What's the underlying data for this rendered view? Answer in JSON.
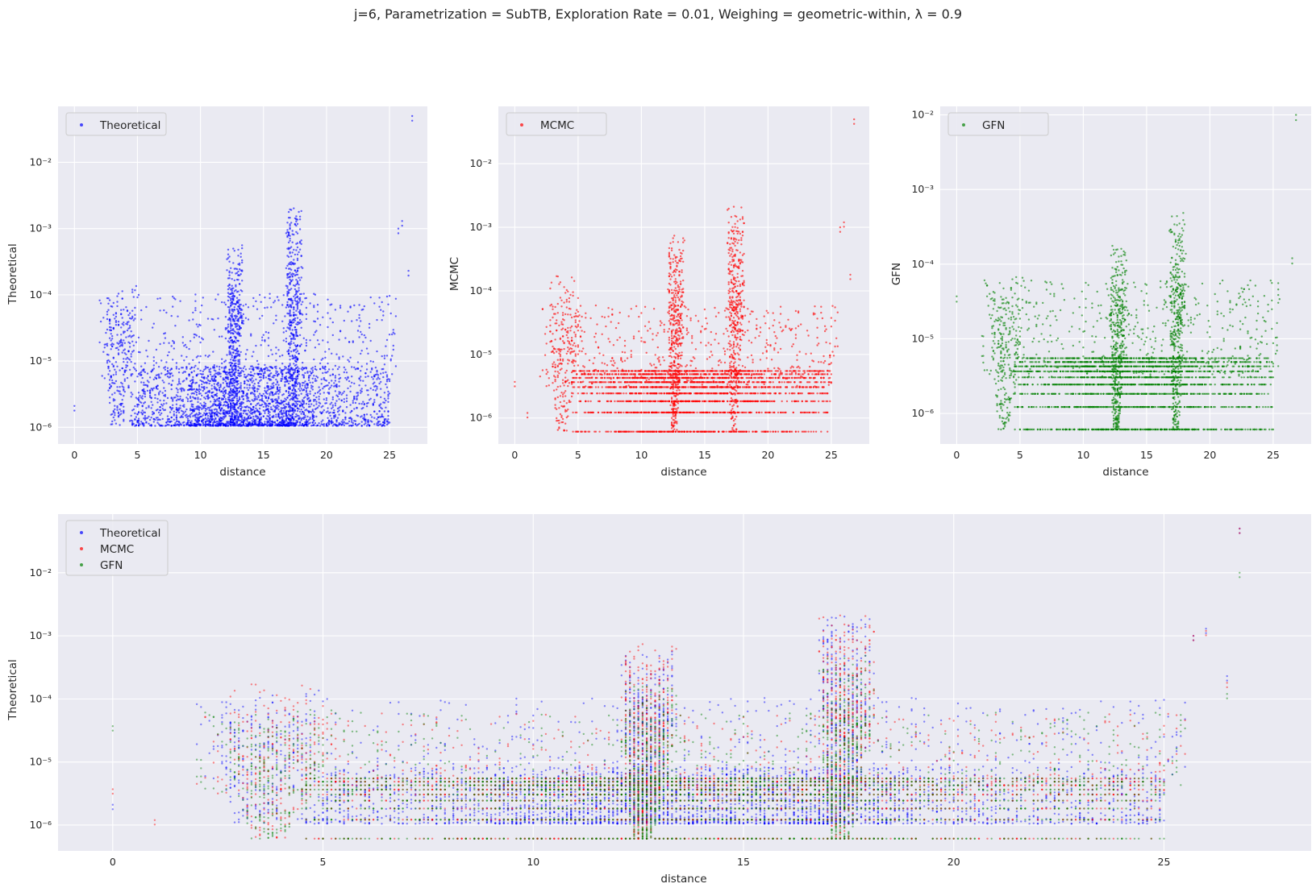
{
  "figure": {
    "suptitle": "j=6, Parametrization = SubTB, Exploration Rate = 0.01, Weighing = geometric-within, λ = 0.9"
  },
  "chart_data": [
    {
      "type": "scatter",
      "panel": "top-left",
      "xlabel": "distance",
      "ylabel": "Theoretical",
      "yscale": "log",
      "xlim": [
        -1.3,
        28
      ],
      "ylim": [
        5.6e-07,
        0.07
      ],
      "xticks": [
        0,
        5,
        10,
        15,
        20,
        25
      ],
      "yticks": [
        1e-06,
        1e-05,
        0.0001,
        0.001,
        0.01
      ],
      "ytick_labels": [
        "10⁻⁶",
        "10⁻⁵",
        "10⁻⁴",
        "10⁻³",
        "10⁻²"
      ],
      "grid": true,
      "legend": {
        "position": "upper-left",
        "entries": [
          "Theoretical"
        ]
      },
      "series": [
        {
          "name": "Theoretical",
          "color": "#0000ff",
          "floor": 1.05e-06,
          "base_levels": [],
          "peaks": [
            {
              "x": 12.5,
              "y": 0.00065
            },
            {
              "x": 17.2,
              "y": 0.0022
            },
            {
              "x": 3.2,
              "y": 0.00018
            },
            {
              "x": 26.8,
              "y": 0.05
            },
            {
              "x": 26.0,
              "y": 0.0013
            },
            {
              "x": 25.7,
              "y": 0.001
            },
            {
              "x": 26.5,
              "y": 0.00023
            },
            {
              "x": 0.0,
              "y": 2.1e-06
            }
          ]
        }
      ]
    },
    {
      "type": "scatter",
      "panel": "top-middle",
      "xlabel": "distance",
      "ylabel": "MCMC",
      "yscale": "log",
      "xlim": [
        -1.3,
        28
      ],
      "ylim": [
        3.9e-07,
        0.08
      ],
      "xticks": [
        0,
        5,
        10,
        15,
        20,
        25
      ],
      "yticks": [
        1e-06,
        1e-05,
        0.0001,
        0.001,
        0.01
      ],
      "ytick_labels": [
        "10⁻⁶",
        "10⁻⁵",
        "10⁻⁴",
        "10⁻³",
        "10⁻²"
      ],
      "grid": true,
      "legend": {
        "position": "upper-left",
        "entries": [
          "MCMC"
        ]
      },
      "series": [
        {
          "name": "MCMC",
          "color": "#ff0000",
          "floor": 6.1e-07,
          "base_levels": [
            6.1e-07,
            1.22e-06,
            1.83e-06,
            2.44e-06,
            3.05e-06,
            3.66e-06,
            4.27e-06,
            4.88e-06,
            5.49e-06
          ],
          "peaks": [
            {
              "x": 12.5,
              "y": 0.00085
            },
            {
              "x": 17.2,
              "y": 0.0027
            },
            {
              "x": 3.5,
              "y": 0.00019
            },
            {
              "x": 26.8,
              "y": 0.05
            },
            {
              "x": 26.0,
              "y": 0.0012
            },
            {
              "x": 25.7,
              "y": 0.001
            },
            {
              "x": 26.5,
              "y": 0.00018
            },
            {
              "x": 0.0,
              "y": 3.7e-06
            },
            {
              "x": 1.0,
              "y": 1.2e-06
            }
          ]
        }
      ]
    },
    {
      "type": "scatter",
      "panel": "top-right",
      "xlabel": "distance",
      "ylabel": "GFN",
      "yscale": "log",
      "xlim": [
        -1.3,
        28
      ],
      "ylim": [
        3.9e-07,
        0.013
      ],
      "xticks": [
        0,
        5,
        10,
        15,
        20,
        25
      ],
      "yticks": [
        1e-06,
        1e-05,
        0.0001,
        0.001,
        0.01
      ],
      "ytick_labels": [
        "10⁻⁶",
        "10⁻⁵",
        "10⁻⁴",
        "10⁻³",
        "10⁻²"
      ],
      "grid": true,
      "legend": {
        "position": "upper-left",
        "entries": [
          "GFN"
        ]
      },
      "series": [
        {
          "name": "GFN",
          "color": "#008000",
          "floor": 6.1e-07,
          "base_levels": [
            6.1e-07,
            1.22e-06,
            1.83e-06,
            2.44e-06,
            3.05e-06,
            3.66e-06,
            4.27e-06,
            4.88e-06,
            5.49e-06
          ],
          "peaks": [
            {
              "x": 12.5,
              "y": 0.0002
            },
            {
              "x": 17.2,
              "y": 0.00052
            },
            {
              "x": 3.5,
              "y": 7e-05
            },
            {
              "x": 26.8,
              "y": 0.01
            },
            {
              "x": 26.5,
              "y": 0.00012
            },
            {
              "x": 0.0,
              "y": 3.7e-05
            }
          ]
        }
      ]
    },
    {
      "type": "scatter",
      "panel": "bottom",
      "xlabel": "distance",
      "ylabel": "Theoretical",
      "yscale": "log",
      "xlim": [
        -1.3,
        28.5
      ],
      "ylim": [
        3.9e-07,
        0.085
      ],
      "xticks": [
        0,
        5,
        10,
        15,
        20,
        25
      ],
      "yticks": [
        1e-06,
        1e-05,
        0.0001,
        0.001,
        0.01
      ],
      "ytick_labels": [
        "10⁻⁶",
        "10⁻⁵",
        "10⁻⁴",
        "10⁻³",
        "10⁻²"
      ],
      "grid": true,
      "legend": {
        "position": "upper-left",
        "entries": [
          "Theoretical",
          "MCMC",
          "GFN"
        ]
      },
      "series": [
        {
          "name": "Theoretical",
          "color": "#0000ff",
          "ref": 0
        },
        {
          "name": "MCMC",
          "color": "#ff0000",
          "ref": 1
        },
        {
          "name": "GFN",
          "color": "#008000",
          "ref": 2
        }
      ]
    }
  ]
}
